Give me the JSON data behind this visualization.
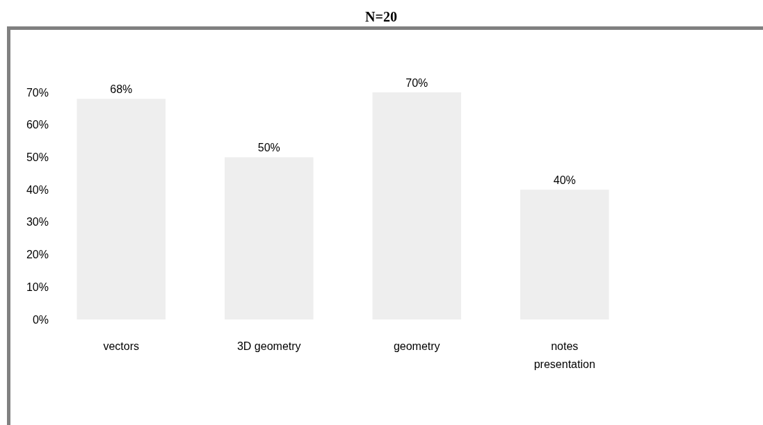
{
  "chart_data": {
    "type": "bar",
    "title": "N=20",
    "categories": [
      "vectors",
      "3D geometry",
      "geometry",
      "notes presentation"
    ],
    "values": [
      68,
      50,
      70,
      40
    ],
    "value_labels": [
      "68%",
      "50%",
      "70%",
      "40%"
    ],
    "color": "#eeeeee",
    "ylim": [
      0,
      70
    ],
    "yticks": [
      {
        "value": 0,
        "label": "0%"
      },
      {
        "value": 10,
        "label": "10%"
      },
      {
        "value": 20,
        "label": "20%"
      },
      {
        "value": 30,
        "label": "30%"
      },
      {
        "value": 40,
        "label": "40%"
      },
      {
        "value": 50,
        "label": "50%"
      },
      {
        "value": 60,
        "label": "60%"
      },
      {
        "value": 70,
        "label": "70%"
      }
    ]
  }
}
